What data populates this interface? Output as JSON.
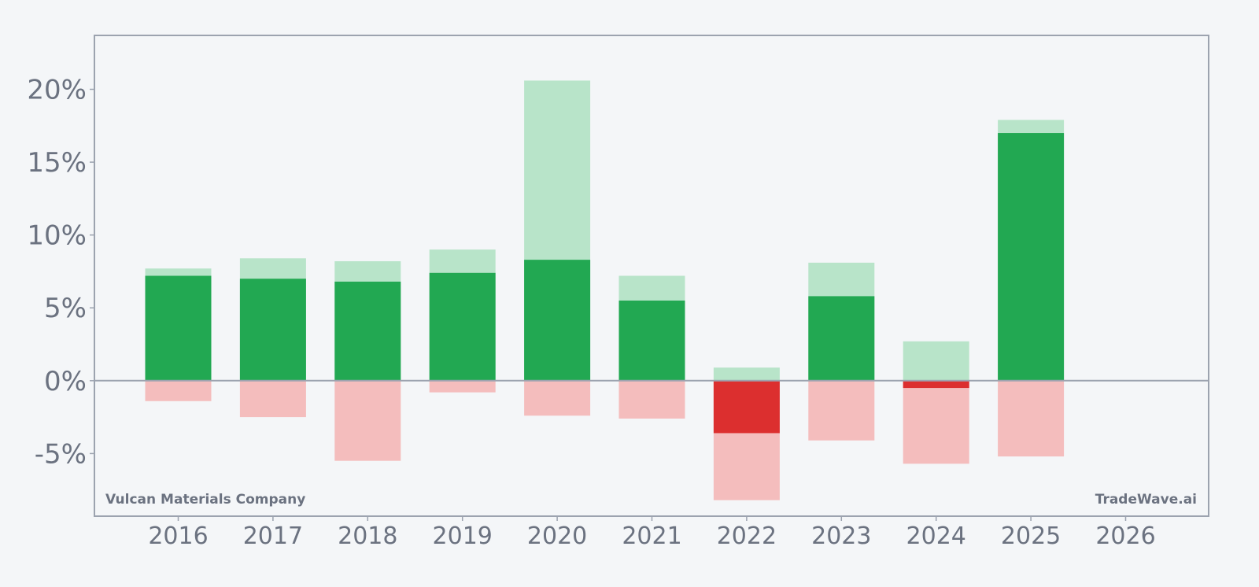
{
  "chart_data": {
    "type": "bar",
    "categories": [
      "2016",
      "2017",
      "2018",
      "2019",
      "2020",
      "2021",
      "2022",
      "2023",
      "2024",
      "2025",
      "2026"
    ],
    "ylim": [
      -9.3,
      23.7
    ],
    "yticks": [
      -5,
      0,
      5,
      10,
      15,
      20
    ],
    "ytick_labels": [
      "-5%",
      "0%",
      "5%",
      "10%",
      "15%",
      "20%"
    ],
    "grid": false,
    "series": [
      {
        "role": "range_high",
        "values": [
          7.7,
          8.4,
          8.2,
          9.0,
          20.6,
          7.2,
          0.9,
          8.1,
          2.7,
          17.9,
          null
        ]
      },
      {
        "role": "range_low",
        "values": [
          -1.4,
          -2.5,
          -5.5,
          -0.8,
          -2.4,
          -2.6,
          -8.2,
          -4.1,
          -5.7,
          -5.2,
          null
        ]
      },
      {
        "role": "actual",
        "values": [
          7.2,
          7.0,
          6.8,
          7.4,
          8.3,
          5.5,
          -3.6,
          5.8,
          -0.5,
          17.0,
          null
        ]
      }
    ],
    "colors": {
      "positive": "#22a852",
      "negative": "#dc2f2f",
      "range_high": "#b8e4c9",
      "range_low": "#f4bdbd",
      "frame": "#9ca3af",
      "zero_line": "#9ca3af"
    }
  },
  "watermark_left": "Vulcan Materials Company",
  "watermark_right": "TradeWave.ai"
}
